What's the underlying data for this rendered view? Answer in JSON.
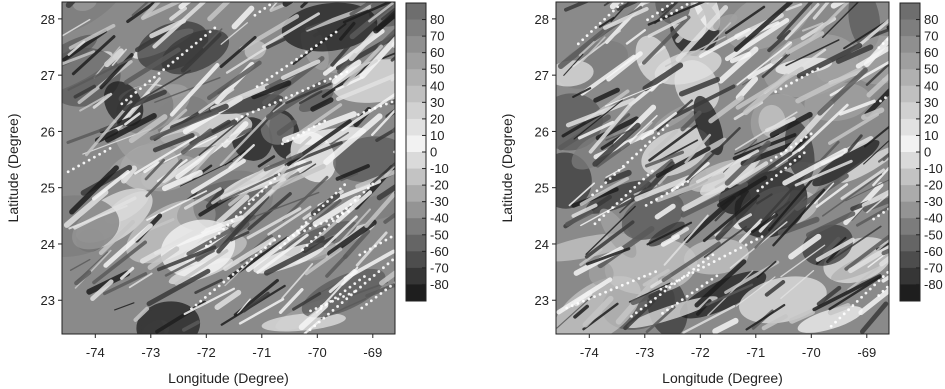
{
  "chart_data": [
    {
      "type": "heatmap",
      "xlabel": "Longitude (Degree)",
      "ylabel": "Latitude (Degree)",
      "xlim": [
        -74.6,
        -68.6
      ],
      "ylim": [
        22.4,
        28.3
      ],
      "xticks": [
        -74,
        -73,
        -72,
        -71,
        -70,
        -69
      ],
      "yticks": [
        23,
        24,
        25,
        26,
        27,
        28
      ],
      "colorbar": {
        "ticks": [
          80,
          70,
          60,
          50,
          40,
          30,
          20,
          10,
          0,
          -10,
          -20,
          -30,
          -40,
          -50,
          -60,
          -70,
          -80
        ],
        "range": [
          -90,
          90
        ],
        "colormap": "grayscale"
      },
      "field": {
        "seed": 11
      }
    },
    {
      "type": "heatmap",
      "xlabel": "Longitude (Degree)",
      "ylabel": "Latitude (Degree)",
      "xlim": [
        -74.6,
        -68.6
      ],
      "ylim": [
        22.4,
        28.3
      ],
      "xticks": [
        -74,
        -73,
        -72,
        -71,
        -70,
        -69
      ],
      "yticks": [
        23,
        24,
        25,
        26,
        27,
        28
      ],
      "colorbar": {
        "ticks": [
          80,
          70,
          60,
          50,
          40,
          30,
          20,
          10,
          0,
          -10,
          -20,
          -30,
          -40,
          -50,
          -60,
          -70,
          -80
        ],
        "range": [
          -90,
          90
        ],
        "colormap": "grayscale"
      },
      "field": {
        "seed": 29
      }
    }
  ]
}
